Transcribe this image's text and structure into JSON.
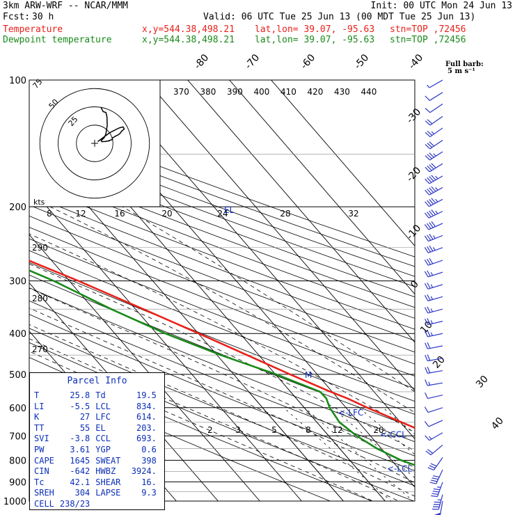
{
  "header": {
    "model": "3km ARW-WRF -- NCAR/MMM",
    "init": "Init: 00 UTC Mon 24 Jun 13",
    "fcst_label": "Fcst:",
    "fcst_value": "30 h",
    "valid": "Valid: 06 UTC Tue 25 Jun 13 (00 MDT Tue 25 Jun 13)",
    "temp_line": {
      "name": "Temperature",
      "xy": "x,y=544.38,498.21",
      "latlon": "lat,lon= 39.07, -95.63",
      "stn": "stn=TOP ,72456"
    },
    "dew_line": {
      "name": "Dewpoint temperature",
      "xy": "x,y=544.38,498.21",
      "latlon": "lat,lon= 39.07, -95.63",
      "stn": "stn=TOP ,72456"
    }
  },
  "barb_legend": {
    "title": "Full barb:",
    "sub": "5 m s⁻¹"
  },
  "parcel_info": {
    "title": "Parcel Info",
    "rows": [
      {
        "l": "T",
        "lv": "25.8",
        "r": "Td",
        "rv": "19.5"
      },
      {
        "l": "LI",
        "lv": "-5.5",
        "r": "LCL",
        "rv": "834."
      },
      {
        "l": "K",
        "lv": "27",
        "r": "LFC",
        "rv": "614."
      },
      {
        "l": "TT",
        "lv": "55",
        "r": "EL",
        "rv": "203."
      },
      {
        "l": "SVI",
        "lv": "-3.8",
        "r": "CCL",
        "rv": "693."
      },
      {
        "l": "PW",
        "lv": "3.61",
        "r": "YGP",
        "rv": "0.6"
      },
      {
        "l": "CAPE",
        "lv": "1645",
        "r": "SWEAT",
        "rv": "398"
      },
      {
        "l": "CIN",
        "lv": "-642",
        "r": "HWBZ",
        "rv": "3924."
      },
      {
        "l": "Tc",
        "lv": "42.1",
        "r": "SHEAR",
        "rv": "16."
      },
      {
        "l": "SREH",
        "lv": "304",
        "r": "LAPSE",
        "rv": "9.3"
      },
      {
        "l": "CELL",
        "lv": "238/23",
        "r": "",
        "rv": ""
      }
    ]
  },
  "colors": {
    "temperature": "#e8211a",
    "dewpoint": "#1a8a1a",
    "info": "#0b2fb8",
    "barb": "#2b35c8"
  },
  "chart_data": {
    "type": "line",
    "title": "",
    "y_axis": {
      "label": "",
      "units": "hPa",
      "ticks": [
        100,
        200,
        300,
        400,
        500,
        600,
        700,
        800,
        900,
        1000
      ]
    },
    "isotherm_labels": [
      -80,
      -70,
      -60,
      -50,
      -40,
      -30,
      -20,
      -10,
      0,
      10,
      20,
      30,
      40
    ],
    "theta_labels": [
      370,
      380,
      390,
      400,
      410,
      420,
      430,
      440
    ],
    "mixing_ratio_labels": [
      2,
      3,
      5,
      8,
      12,
      20
    ],
    "theta_e_labels": [
      290,
      280,
      270
    ],
    "hodo_speed_labels": [
      8,
      12,
      16,
      20,
      24,
      28,
      32
    ],
    "hodo_ring_labels": [
      75,
      50,
      25
    ],
    "hodo_units": "kts",
    "level_marks": [
      {
        "label": "EL",
        "p": 203
      },
      {
        "label": "M",
        "p": 500
      },
      {
        "label": "<-LFC",
        "p": 614
      },
      {
        "label": "<-CCL",
        "p": 693
      },
      {
        "label": "<-LCL",
        "p": 834
      }
    ],
    "series": [
      {
        "name": "Temperature",
        "points": [
          [
            1000,
            25.8
          ],
          [
            975,
            24.6
          ],
          [
            950,
            28.2
          ],
          [
            925,
            31.1
          ],
          [
            900,
            31.1
          ],
          [
            875,
            30.3
          ],
          [
            850,
            28.6
          ],
          [
            825,
            26.5
          ],
          [
            800,
            24.2
          ],
          [
            775,
            21.8
          ],
          [
            750,
            19.6
          ],
          [
            700,
            15.1
          ],
          [
            650,
            10.3
          ],
          [
            600,
            5.1
          ],
          [
            570,
            2.2
          ],
          [
            550,
            -0.4
          ],
          [
            500,
            -6.5
          ],
          [
            450,
            -12.8
          ],
          [
            400,
            -19.9
          ],
          [
            350,
            -28.1
          ],
          [
            300,
            -37.8
          ],
          [
            275,
            -43.8
          ],
          [
            250,
            -50.2
          ],
          [
            225,
            -55.6
          ],
          [
            200,
            -60.5
          ],
          [
            175,
            -63.1
          ],
          [
            150,
            -65.5
          ],
          [
            130,
            -67.5
          ],
          [
            115,
            -70.3
          ],
          [
            100,
            -75.4
          ]
        ]
      },
      {
        "name": "Dewpoint temperature",
        "points": [
          [
            1000,
            19.5
          ],
          [
            975,
            19.6
          ],
          [
            950,
            19.4
          ],
          [
            925,
            17.3
          ],
          [
            900,
            14.2
          ],
          [
            875,
            10.8
          ],
          [
            850,
            7.6
          ],
          [
            800,
            2.3
          ],
          [
            750,
            -1.1
          ],
          [
            700,
            -3.3
          ],
          [
            650,
            -4.6
          ],
          [
            600,
            -3.9
          ],
          [
            570,
            -2.8
          ],
          [
            550,
            -2.9
          ],
          [
            500,
            -9.8
          ],
          [
            450,
            -19.1
          ],
          [
            400,
            -27.9
          ],
          [
            350,
            -35.8
          ],
          [
            300,
            -43.7
          ],
          [
            250,
            -55.5
          ],
          [
            225,
            -62.3
          ],
          [
            200,
            -67.3
          ],
          [
            180,
            -71.2
          ],
          [
            165,
            -75.4
          ],
          [
            150,
            -78.6
          ],
          [
            135,
            -82.3
          ],
          [
            122,
            -85.5
          ],
          [
            113,
            -88.7
          ],
          [
            106,
            -92.7
          ],
          [
            100,
            -96.5
          ]
        ]
      }
    ],
    "wind_barbs": [
      [
        100,
        240,
        5
      ],
      [
        107,
        238,
        10
      ],
      [
        114,
        236,
        12
      ],
      [
        122,
        235,
        20
      ],
      [
        130,
        235,
        25
      ],
      [
        139,
        236,
        30
      ],
      [
        148,
        237,
        35
      ],
      [
        158,
        238,
        40
      ],
      [
        169,
        240,
        45
      ],
      [
        180,
        241,
        45
      ],
      [
        192,
        242,
        45
      ],
      [
        205,
        244,
        45
      ],
      [
        219,
        246,
        40
      ],
      [
        234,
        248,
        38
      ],
      [
        250,
        250,
        35
      ],
      [
        268,
        251,
        30
      ],
      [
        286,
        252,
        28
      ],
      [
        306,
        253,
        25
      ],
      [
        327,
        254,
        25
      ],
      [
        350,
        255,
        25
      ],
      [
        374,
        257,
        25
      ],
      [
        400,
        258,
        25
      ],
      [
        428,
        259,
        20
      ],
      [
        458,
        260,
        20
      ],
      [
        490,
        260,
        20
      ],
      [
        524,
        260,
        15
      ],
      [
        560,
        257,
        10
      ],
      [
        600,
        252,
        10
      ],
      [
        643,
        246,
        10
      ],
      [
        688,
        240,
        15
      ],
      [
        736,
        230,
        20
      ],
      [
        788,
        215,
        30
      ],
      [
        843,
        205,
        40
      ],
      [
        902,
        200,
        45
      ],
      [
        965,
        195,
        45
      ],
      [
        1000,
        190,
        50
      ]
    ]
  }
}
